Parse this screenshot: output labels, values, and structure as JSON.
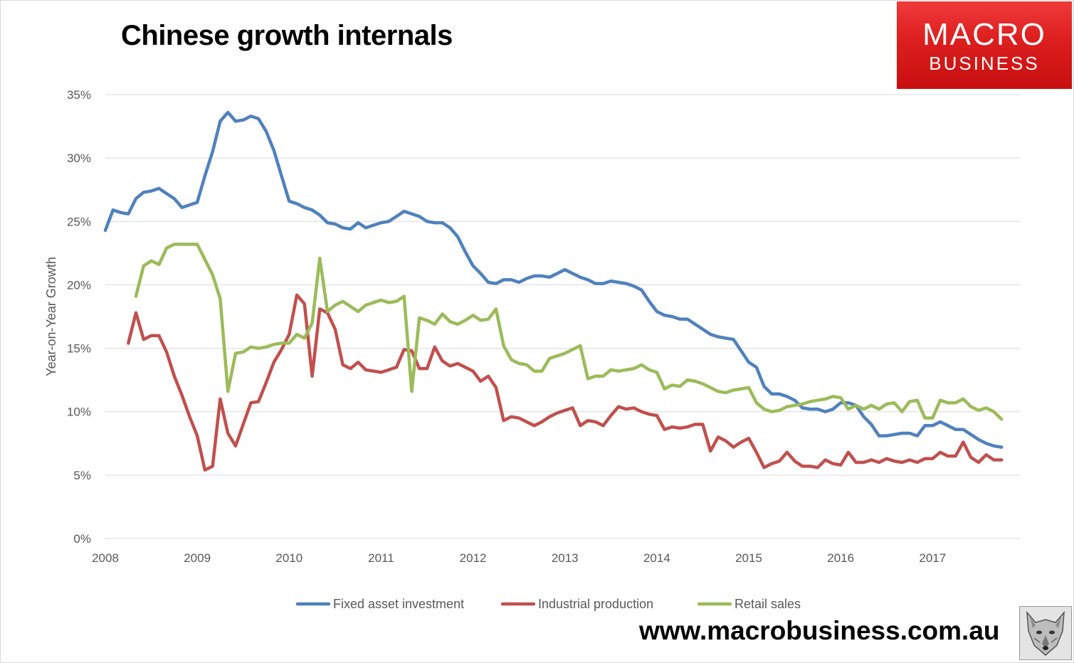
{
  "page": {
    "title": "Chinese growth internals",
    "brand_line1": "MACRO",
    "brand_line2": "BUSINESS",
    "url": "www.macrobusiness.com.au"
  },
  "colors": {
    "fixed_asset_investment": "#4f81bd",
    "industrial_production": "#c0504d",
    "retail_sales": "#9bbb59",
    "grid": "#d9d9d9",
    "brand_red": "#dc1e1e"
  },
  "icons": {
    "logo": "wolf-head-icon"
  },
  "chart_data": {
    "type": "line",
    "title": "",
    "xlabel": "",
    "ylabel": "Year-on-Year Growth",
    "xlim": [
      2008.0,
      2017.95
    ],
    "ylim": [
      0,
      35
    ],
    "x_ticks": [
      2008,
      2009,
      2010,
      2011,
      2012,
      2013,
      2014,
      2015,
      2016,
      2017
    ],
    "y_ticks": [
      0,
      5,
      10,
      15,
      20,
      25,
      30,
      35
    ],
    "y_tick_labels": [
      "0%",
      "5%",
      "10%",
      "15%",
      "20%",
      "25%",
      "30%",
      "35%"
    ],
    "grid": "horizontal",
    "legend": "bottom",
    "x_frequency": "monthly",
    "series": [
      {
        "name": "Fixed asset investment",
        "x_start": "2008-01",
        "values": [
          24.3,
          25.9,
          25.7,
          25.6,
          26.8,
          27.3,
          27.4,
          27.6,
          27.2,
          26.8,
          26.1,
          26.3,
          26.5,
          28.6,
          30.5,
          32.9,
          33.6,
          32.9,
          33.0,
          33.3,
          33.1,
          32.1,
          30.6,
          28.6,
          26.6,
          26.4,
          26.1,
          25.9,
          25.5,
          24.9,
          24.8,
          24.5,
          24.4,
          24.9,
          24.5,
          24.7,
          24.9,
          25.0,
          25.4,
          25.8,
          25.6,
          25.4,
          25.0,
          24.9,
          24.9,
          24.5,
          23.8,
          22.6,
          21.5,
          20.9,
          20.2,
          20.1,
          20.4,
          20.4,
          20.2,
          20.5,
          20.7,
          20.7,
          20.6,
          20.9,
          21.2,
          20.9,
          20.6,
          20.4,
          20.1,
          20.1,
          20.3,
          20.2,
          20.1,
          19.9,
          19.6,
          18.7,
          17.9,
          17.6,
          17.5,
          17.3,
          17.3,
          16.9,
          16.5,
          16.1,
          15.9,
          15.8,
          15.7,
          14.8,
          13.9,
          13.5,
          12.0,
          11.4,
          11.4,
          11.2,
          10.9,
          10.3,
          10.2,
          10.2,
          10.0,
          10.2,
          10.7,
          10.7,
          10.5,
          9.6,
          9.0,
          8.1,
          8.1,
          8.2,
          8.3,
          8.3,
          8.1,
          8.9,
          8.9,
          9.2,
          8.9,
          8.6,
          8.6,
          8.2,
          7.8,
          7.5,
          7.3,
          7.2
        ]
      },
      {
        "name": "Industrial production",
        "x_start": "2008-01",
        "values": [
          null,
          null,
          null,
          15.4,
          17.8,
          15.7,
          16.0,
          16.0,
          14.7,
          12.8,
          11.3,
          9.6,
          8.1,
          5.4,
          5.7,
          11.0,
          8.3,
          7.3,
          9.0,
          10.7,
          10.8,
          12.3,
          13.9,
          14.9,
          16.1,
          19.2,
          18.5,
          12.8,
          18.1,
          17.8,
          16.5,
          13.7,
          13.4,
          13.9,
          13.3,
          13.2,
          13.1,
          13.3,
          13.5,
          14.9,
          14.8,
          13.4,
          13.4,
          15.1,
          14.0,
          13.6,
          13.8,
          13.5,
          13.2,
          12.4,
          12.8,
          11.9,
          9.3,
          9.6,
          9.5,
          9.2,
          8.9,
          9.2,
          9.6,
          9.9,
          10.1,
          10.3,
          8.9,
          9.3,
          9.2,
          8.9,
          9.7,
          10.4,
          10.2,
          10.3,
          10.0,
          9.8,
          9.7,
          8.6,
          8.8,
          8.7,
          8.8,
          9.0,
          9.0,
          6.9,
          8.0,
          7.7,
          7.2,
          7.6,
          7.9,
          6.8,
          5.6,
          5.9,
          6.1,
          6.8,
          6.1,
          5.7,
          5.7,
          5.6,
          6.2,
          5.9,
          5.8,
          6.8,
          6.0,
          6.0,
          6.2,
          6.0,
          6.3,
          6.1,
          6.0,
          6.2,
          6.0,
          6.3,
          6.3,
          6.8,
          6.5,
          6.5,
          7.6,
          6.4,
          6.0,
          6.6,
          6.2,
          6.2
        ]
      },
      {
        "name": "Retail sales",
        "x_start": "2008-01",
        "values": [
          null,
          null,
          null,
          null,
          19.1,
          21.5,
          21.9,
          21.6,
          22.9,
          23.2,
          23.2,
          23.2,
          23.2,
          22.0,
          20.8,
          18.9,
          11.6,
          14.6,
          14.7,
          15.1,
          15.0,
          15.1,
          15.3,
          15.4,
          15.4,
          16.1,
          15.8,
          17.0,
          22.1,
          17.9,
          18.4,
          18.7,
          18.3,
          17.9,
          18.4,
          18.6,
          18.8,
          18.6,
          18.7,
          19.1,
          11.6,
          17.4,
          17.2,
          16.9,
          17.7,
          17.1,
          16.9,
          17.2,
          17.6,
          17.2,
          17.3,
          18.1,
          15.2,
          14.1,
          13.8,
          13.7,
          13.2,
          13.2,
          14.2,
          14.4,
          14.6,
          14.9,
          15.2,
          12.6,
          12.8,
          12.8,
          13.3,
          13.2,
          13.3,
          13.4,
          13.7,
          13.3,
          13.1,
          11.8,
          12.1,
          12.0,
          12.5,
          12.4,
          12.2,
          11.9,
          11.6,
          11.5,
          11.7,
          11.8,
          11.9,
          10.7,
          10.2,
          10.0,
          10.1,
          10.4,
          10.5,
          10.6,
          10.8,
          10.9,
          11.0,
          11.2,
          11.1,
          10.2,
          10.5,
          10.2,
          10.5,
          10.2,
          10.6,
          10.7,
          10.0,
          10.8,
          10.9,
          9.5,
          9.5,
          10.9,
          10.7,
          10.7,
          11.0,
          10.4,
          10.1,
          10.3,
          10.0,
          9.4
        ]
      }
    ]
  }
}
